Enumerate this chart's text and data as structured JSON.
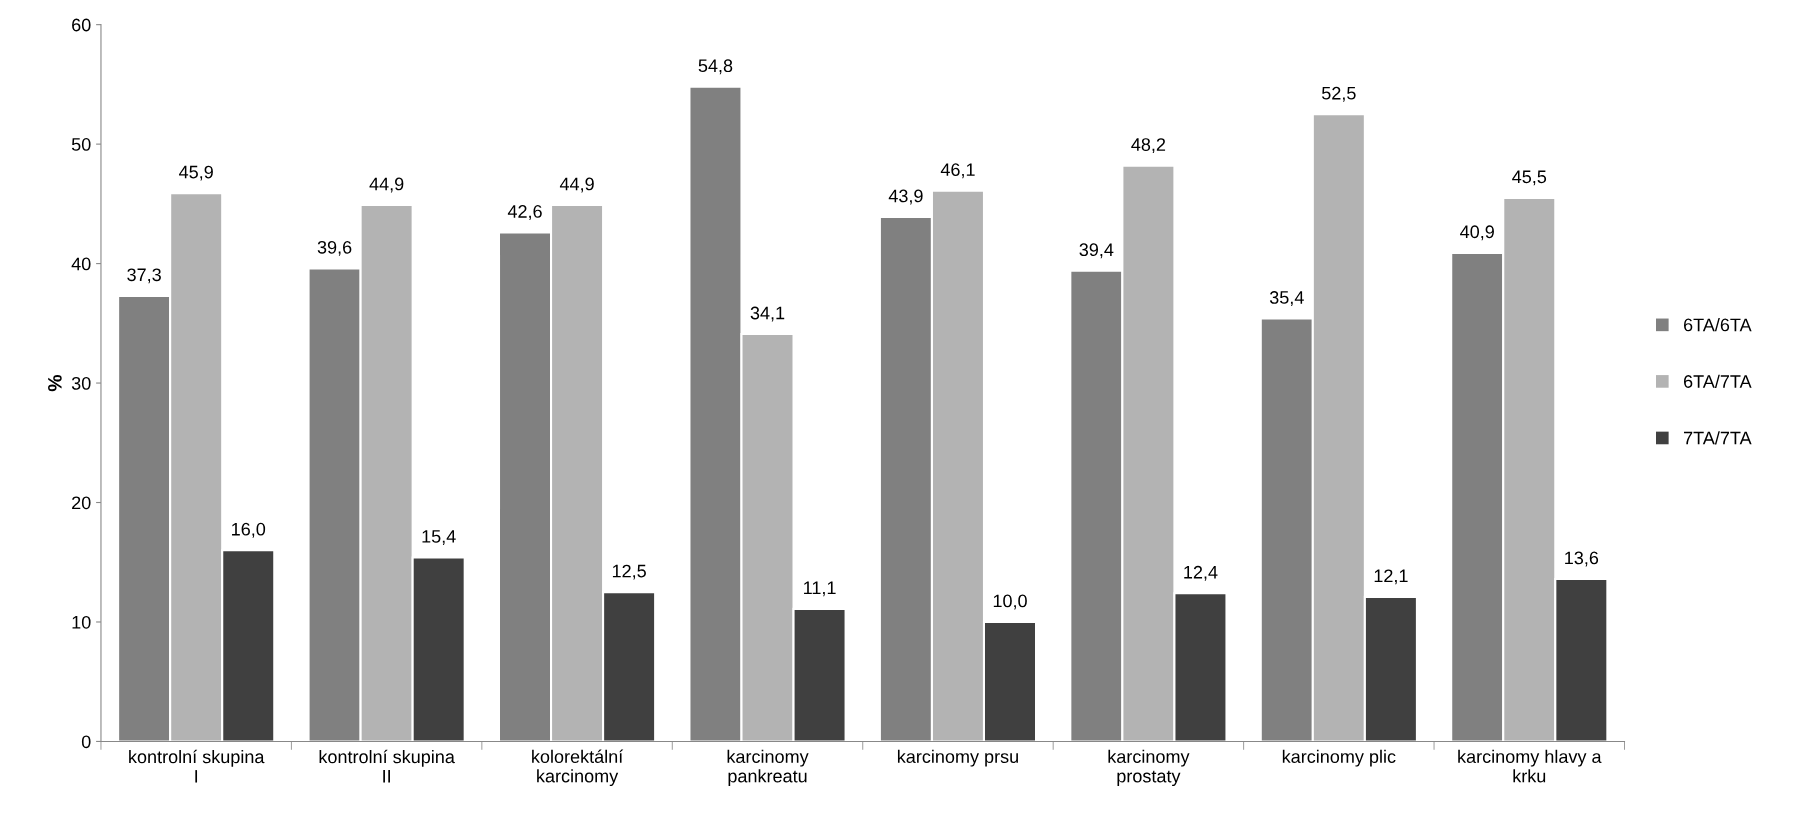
{
  "chart_data": {
    "type": "bar",
    "ylabel": "%",
    "categories": [
      "kontrolní skupina I",
      "kontrolní skupina II",
      "kolorektální karcinomy",
      "karcinomy pankreatu",
      "karcinomy prsu",
      "karcinomy prostaty",
      "karcinomy plic",
      "karcinomy hlavy a krku"
    ],
    "series": [
      {
        "name": "6TA/6TA",
        "color": "#808080",
        "values": [
          37.3,
          39.6,
          42.6,
          54.8,
          43.9,
          39.4,
          35.4,
          40.9
        ],
        "value_labels": [
          "37,3",
          "39,6",
          "42,6",
          "54,8",
          "43,9",
          "39,4",
          "35,4",
          "40,9"
        ]
      },
      {
        "name": "6TA/7TA",
        "color": "#b3b3b3",
        "values": [
          45.9,
          44.9,
          44.9,
          34.1,
          46.1,
          48.2,
          52.5,
          45.5
        ],
        "value_labels": [
          "45,9",
          "44,9",
          "44,9",
          "34,1",
          "46,1",
          "48,2",
          "52,5",
          "45,5"
        ]
      },
      {
        "name": "7TA/7TA",
        "color": "#404040",
        "values": [
          16.0,
          15.4,
          12.5,
          11.1,
          10.0,
          12.4,
          12.1,
          13.6
        ],
        "value_labels": [
          "16,0",
          "15,4",
          "12,5",
          "11,1",
          "10,0",
          "12,4",
          "12,1",
          "13,6"
        ]
      }
    ],
    "ylim": [
      0,
      60
    ],
    "yticks": [
      0,
      10,
      20,
      30,
      40,
      50,
      60
    ],
    "grid": false,
    "legend": "right"
  }
}
